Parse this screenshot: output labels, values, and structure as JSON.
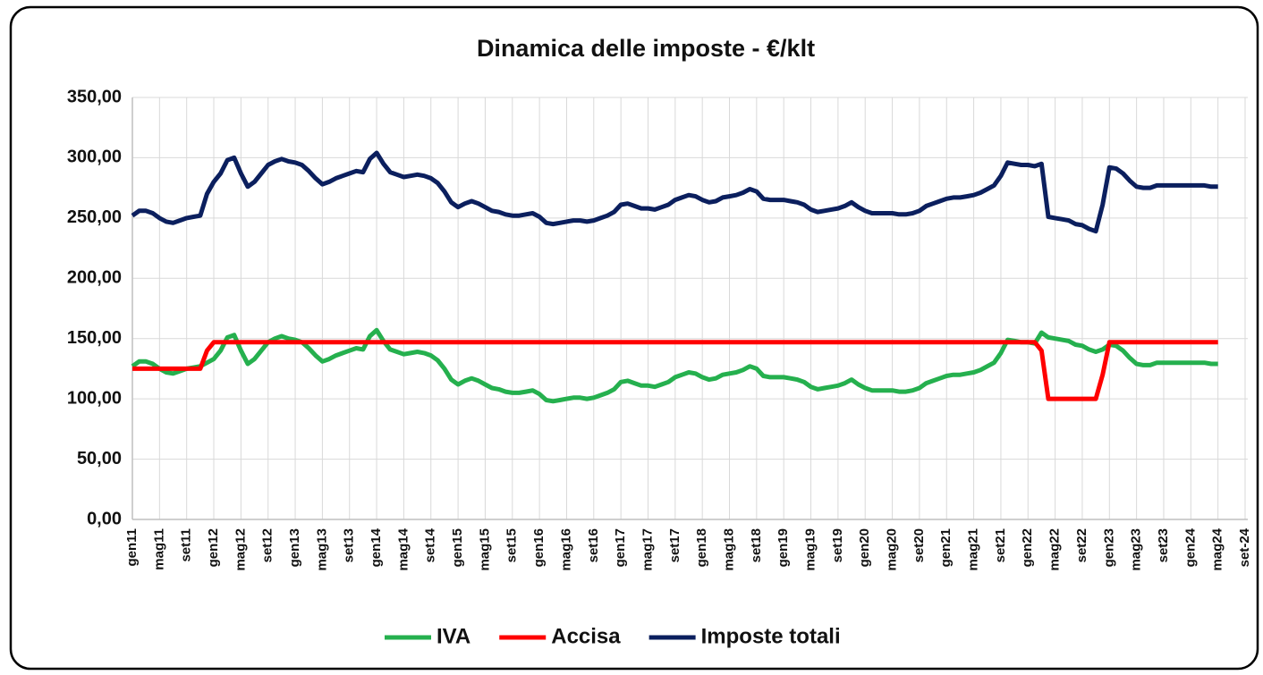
{
  "chart_data": {
    "type": "line",
    "title": "Dinamica delle imposte - €/klt",
    "categories": [
      "gen11",
      null,
      null,
      null,
      "mag11",
      null,
      null,
      null,
      "set11",
      null,
      null,
      null,
      "gen12",
      null,
      null,
      null,
      "mag12",
      null,
      null,
      null,
      "set12",
      null,
      null,
      null,
      "gen13",
      null,
      null,
      null,
      "mag13",
      null,
      null,
      null,
      "set13",
      null,
      null,
      null,
      "gen14",
      null,
      null,
      null,
      "mag14",
      null,
      null,
      null,
      "set14",
      null,
      null,
      null,
      "gen15",
      null,
      null,
      null,
      "mag15",
      null,
      null,
      null,
      "set15",
      null,
      null,
      null,
      "gen16",
      null,
      null,
      null,
      "mag16",
      null,
      null,
      null,
      "set16",
      null,
      null,
      null,
      "gen17",
      null,
      null,
      null,
      "mag17",
      null,
      null,
      null,
      "set17",
      null,
      null,
      null,
      "gen18",
      null,
      null,
      null,
      "mag18",
      null,
      null,
      null,
      "set18",
      null,
      null,
      null,
      "gen19",
      null,
      null,
      null,
      "mag19",
      null,
      null,
      null,
      "set19",
      null,
      null,
      null,
      "gen20",
      null,
      null,
      null,
      "mag20",
      null,
      null,
      null,
      "set20",
      null,
      null,
      null,
      "gen21",
      null,
      null,
      null,
      "mag21",
      null,
      null,
      null,
      "set21",
      null,
      null,
      null,
      "gen22",
      null,
      null,
      null,
      "mag22",
      null,
      null,
      null,
      "set22",
      null,
      null,
      null,
      "gen23",
      null,
      null,
      null,
      "mag23",
      null,
      null,
      null,
      "set23",
      null,
      null,
      null,
      "gen24",
      null,
      null,
      null,
      "mag24",
      null,
      null,
      null,
      "set-24"
    ],
    "series": [
      {
        "name": "IVA",
        "color": "#25b04e",
        "values": [
          127,
          131,
          131,
          129,
          125,
          122,
          121,
          123,
          125,
          126,
          127,
          130,
          133,
          140,
          151,
          153,
          140,
          129,
          133,
          140,
          147,
          150,
          152,
          150,
          149,
          147,
          142,
          136,
          131,
          133,
          136,
          138,
          140,
          142,
          141,
          152,
          157,
          148,
          141,
          139,
          137,
          138,
          139,
          138,
          136,
          132,
          125,
          116,
          112,
          115,
          117,
          115,
          112,
          109,
          108,
          106,
          105,
          105,
          106,
          107,
          104,
          99,
          98,
          99,
          100,
          101,
          101,
          100,
          101,
          103,
          105,
          108,
          114,
          115,
          113,
          111,
          111,
          110,
          112,
          114,
          118,
          120,
          122,
          121,
          118,
          116,
          117,
          120,
          121,
          122,
          124,
          127,
          125,
          119,
          118,
          118,
          118,
          117,
          116,
          114,
          110,
          108,
          109,
          110,
          111,
          113,
          116,
          112,
          109,
          107,
          107,
          107,
          107,
          106,
          106,
          107,
          109,
          113,
          115,
          117,
          119,
          120,
          120,
          121,
          122,
          124,
          127,
          130,
          138,
          149,
          148,
          147,
          147,
          146,
          155,
          151,
          150,
          149,
          148,
          145,
          144,
          141,
          139,
          141,
          145,
          144,
          140,
          134,
          129,
          128,
          128,
          130,
          130,
          130,
          130,
          130,
          130,
          130,
          130,
          129,
          129,
          null,
          null,
          null,
          null
        ]
      },
      {
        "name": "Accisa",
        "color": "#ff0000",
        "values": [
          125,
          125,
          125,
          125,
          125,
          125,
          125,
          125,
          125,
          125,
          125,
          140,
          147,
          147,
          147,
          147,
          147,
          147,
          147,
          147,
          147,
          147,
          147,
          147,
          147,
          147,
          147,
          147,
          147,
          147,
          147,
          147,
          147,
          147,
          147,
          147,
          147,
          147,
          147,
          147,
          147,
          147,
          147,
          147,
          147,
          147,
          147,
          147,
          147,
          147,
          147,
          147,
          147,
          147,
          147,
          147,
          147,
          147,
          147,
          147,
          147,
          147,
          147,
          147,
          147,
          147,
          147,
          147,
          147,
          147,
          147,
          147,
          147,
          147,
          147,
          147,
          147,
          147,
          147,
          147,
          147,
          147,
          147,
          147,
          147,
          147,
          147,
          147,
          147,
          147,
          147,
          147,
          147,
          147,
          147,
          147,
          147,
          147,
          147,
          147,
          147,
          147,
          147,
          147,
          147,
          147,
          147,
          147,
          147,
          147,
          147,
          147,
          147,
          147,
          147,
          147,
          147,
          147,
          147,
          147,
          147,
          147,
          147,
          147,
          147,
          147,
          147,
          147,
          147,
          147,
          147,
          147,
          147,
          147,
          140,
          100,
          100,
          100,
          100,
          100,
          100,
          100,
          100,
          120,
          147,
          147,
          147,
          147,
          147,
          147,
          147,
          147,
          147,
          147,
          147,
          147,
          147,
          147,
          147,
          147,
          147,
          null,
          null,
          null,
          null
        ]
      },
      {
        "name": "Imposte totali",
        "color": "#0b1f5e",
        "values": [
          252,
          256,
          256,
          254,
          250,
          247,
          246,
          248,
          250,
          251,
          252,
          270,
          280,
          287,
          298,
          300,
          287,
          276,
          280,
          287,
          294,
          297,
          299,
          297,
          296,
          294,
          289,
          283,
          278,
          280,
          283,
          285,
          287,
          289,
          288,
          299,
          304,
          295,
          288,
          286,
          284,
          285,
          286,
          285,
          283,
          279,
          272,
          263,
          259,
          262,
          264,
          262,
          259,
          256,
          255,
          253,
          252,
          252,
          253,
          254,
          251,
          246,
          245,
          246,
          247,
          248,
          248,
          247,
          248,
          250,
          252,
          255,
          261,
          262,
          260,
          258,
          258,
          257,
          259,
          261,
          265,
          267,
          269,
          268,
          265,
          263,
          264,
          267,
          268,
          269,
          271,
          274,
          272,
          266,
          265,
          265,
          265,
          264,
          263,
          261,
          257,
          255,
          256,
          257,
          258,
          260,
          263,
          259,
          256,
          254,
          254,
          254,
          254,
          253,
          253,
          254,
          256,
          260,
          262,
          264,
          266,
          267,
          267,
          268,
          269,
          271,
          274,
          277,
          285,
          296,
          295,
          294,
          294,
          293,
          295,
          251,
          250,
          249,
          248,
          245,
          244,
          241,
          239,
          261,
          292,
          291,
          287,
          281,
          276,
          275,
          275,
          277,
          277,
          277,
          277,
          277,
          277,
          277,
          277,
          276,
          276,
          null,
          null,
          null,
          null
        ]
      }
    ],
    "ylim": [
      0,
      350
    ],
    "yticks": [
      {
        "value": 0,
        "label": "0,00"
      },
      {
        "value": 50,
        "label": "50,00"
      },
      {
        "value": 100,
        "label": "100,00"
      },
      {
        "value": 150,
        "label": "150,00"
      },
      {
        "value": 200,
        "label": "200,00"
      },
      {
        "value": 250,
        "label": "250,00"
      },
      {
        "value": 300,
        "label": "300,00"
      },
      {
        "value": 350,
        "label": "350,00"
      }
    ],
    "grid": true,
    "legend": "bottom"
  }
}
